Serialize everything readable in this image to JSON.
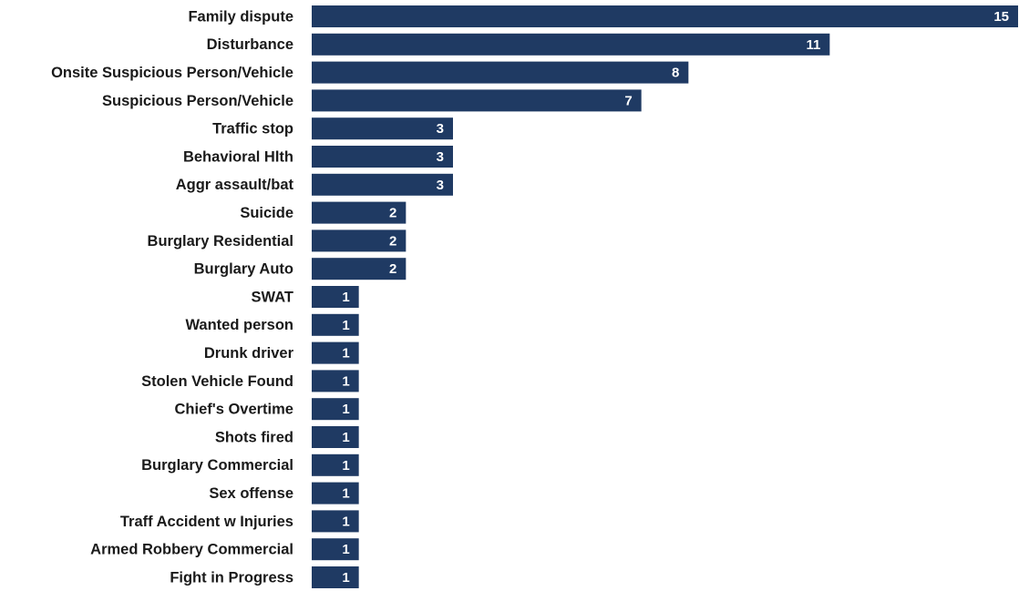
{
  "chart_data": {
    "type": "bar",
    "orientation": "horizontal",
    "color": "#1f3a63",
    "categories": [
      "Family dispute",
      "Disturbance",
      "Onsite Suspicious Person/Vehicle",
      "Suspicious Person/Vehicle",
      "Traffic stop",
      "Behavioral Hlth",
      "Aggr assault/bat",
      "Suicide",
      "Burglary Residential",
      "Burglary Auto",
      "SWAT",
      "Wanted person",
      "Drunk driver",
      "Stolen Vehicle Found",
      "Chief's Overtime",
      "Shots fired",
      "Burglary Commercial",
      "Sex offense",
      "Traff Accident w Injuries",
      "Armed Robbery Commercial",
      "Fight in Progress"
    ],
    "values": [
      15,
      11,
      8,
      7,
      3,
      3,
      3,
      2,
      2,
      2,
      1,
      1,
      1,
      1,
      1,
      1,
      1,
      1,
      1,
      1,
      1
    ]
  }
}
